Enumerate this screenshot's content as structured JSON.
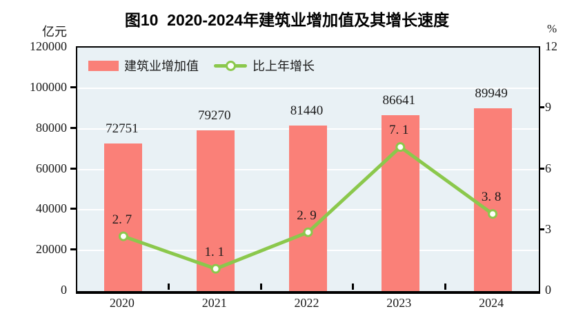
{
  "figure": {
    "title": "图10  2020-2024年建筑业增加值及其增长速度"
  },
  "legend": {
    "bar_label": "建筑业增加值",
    "line_label": "比上年增长"
  },
  "axes": {
    "left_unit": "亿元",
    "right_unit": "%",
    "left_ticks": [
      "0",
      "20000",
      "40000",
      "60000",
      "80000",
      "100000",
      "120000"
    ],
    "right_ticks": [
      "0",
      "3",
      "6",
      "9",
      "12"
    ]
  },
  "chart_data": {
    "type": "bar",
    "title": "图10  2020-2024年建筑业增加值及其增长速度",
    "categories": [
      "2020",
      "2021",
      "2022",
      "2023",
      "2024"
    ],
    "series": [
      {
        "name": "建筑业增加值",
        "type": "bar",
        "axis": "left",
        "values": [
          72751,
          79270,
          81440,
          86641,
          89949
        ],
        "value_labels": [
          "72751",
          "79270",
          "81440",
          "86641",
          "89949"
        ]
      },
      {
        "name": "比上年增长",
        "type": "line",
        "axis": "right",
        "values": [
          2.7,
          1.1,
          2.9,
          7.1,
          3.8
        ],
        "value_labels": [
          "2. 7",
          "1. 1",
          "2. 9",
          "7. 1",
          "3. 8"
        ]
      }
    ],
    "xlabel": "",
    "left_ylabel": "亿元",
    "right_ylabel": "%",
    "left_ylim": [
      0,
      120000
    ],
    "left_tick_step": 20000,
    "right_ylim": [
      0,
      12
    ],
    "right_tick_step": 3,
    "grid": true,
    "legend_position": "top-left"
  },
  "colors": {
    "bar": "#fa8078",
    "line": "#8bc84c",
    "marker_fill": "#fdfef9",
    "plot_bg": "#e9f1f5",
    "grid": "#ffffff",
    "axis": "#000000",
    "text": "#1a1a1a"
  }
}
